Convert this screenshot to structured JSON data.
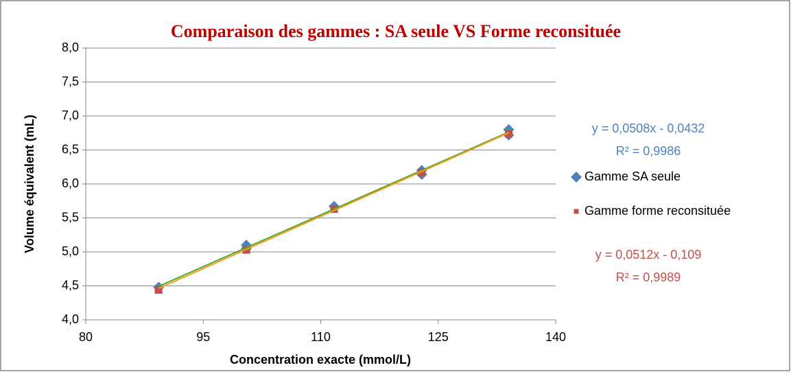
{
  "chart_data": {
    "type": "scatter",
    "title": "Comparaison des gammes : SA seule VS Forme reconsituée",
    "xlabel": "Concentration exacte (mmol/L)",
    "ylabel": "Volume équivalent (mL)",
    "xlim": [
      80,
      140
    ],
    "xticks": [
      80,
      95,
      110,
      125,
      140
    ],
    "ylim": [
      4,
      8
    ],
    "yticks": [
      {
        "value": 4,
        "label": "4,0"
      },
      {
        "value": 4.5,
        "label": "4,5"
      },
      {
        "value": 5,
        "label": "5,0"
      },
      {
        "value": 5.5,
        "label": "5,5"
      },
      {
        "value": 6,
        "label": "6,0"
      },
      {
        "value": 6.5,
        "label": "6,5"
      },
      {
        "value": 7,
        "label": "7,0"
      },
      {
        "value": 7.5,
        "label": "7,5"
      },
      {
        "value": 8,
        "label": "8,0"
      }
    ],
    "grid": true,
    "series": [
      {
        "name": "Gamme SA seule",
        "color": "#4f81bd",
        "marker": "diamond",
        "x": [
          89.3,
          100.5,
          100.5,
          111.7,
          122.9,
          122.9,
          134,
          134
        ],
        "values": [
          4.48,
          5.1,
          5.05,
          5.67,
          6.2,
          6.14,
          6.8,
          6.72
        ],
        "trendline": {
          "color": "#4ea72e",
          "x": [
            89.3,
            134
          ],
          "values": [
            4.493,
            6.764
          ]
        },
        "equation": [
          "y = 0,0508x - 0,0432",
          "R² = 0,9986"
        ]
      },
      {
        "name": "Gamme forme reconsituée",
        "color": "#c0504d",
        "marker": "square",
        "x": [
          89.3,
          100.5,
          111.7,
          122.9,
          134
        ],
        "values": [
          4.44,
          5.03,
          5.63,
          6.17,
          6.74
        ],
        "trendline": {
          "color": "#f59d1e",
          "x": [
            89.3,
            134
          ],
          "values": [
            4.463,
            6.752
          ]
        },
        "equation": [
          "y = 0,0512x - 0,109",
          "R² = 0,9989"
        ]
      }
    ]
  }
}
